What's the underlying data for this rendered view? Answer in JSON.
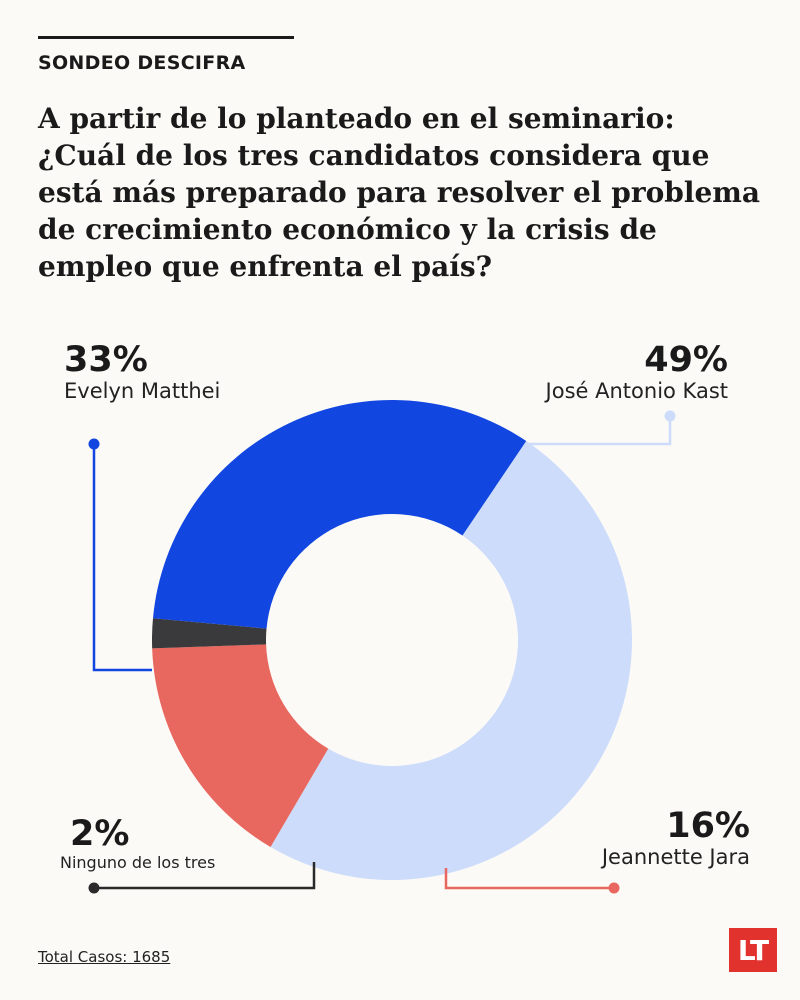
{
  "header": {
    "kicker": "SONDEO DESCIFRA",
    "question": "A partir de lo planteado en el seminario: ¿Cuál de los tres candidatos considera que está más preparado para resolver el problema de crecimiento económico y la crisis de empleo que enfrenta el país?"
  },
  "chart_data": {
    "type": "pie",
    "variant": "donut",
    "slices": [
      {
        "label": "José Antonio Kast",
        "value": 49,
        "display": "49%",
        "color": "#cddcfa"
      },
      {
        "label": "Jeannette Jara",
        "value": 16,
        "display": "16%",
        "color": "#e8675e"
      },
      {
        "label": "Ninguno de los tres",
        "value": 2,
        "display": "2%",
        "color": "#3a3a3c"
      },
      {
        "label": "Evelyn Matthei",
        "value": 33,
        "display": "33%",
        "color": "#1246e0"
      }
    ],
    "legend": "callout labels"
  },
  "footer": {
    "total": "Total Casos: 1685",
    "logo": "LT"
  }
}
